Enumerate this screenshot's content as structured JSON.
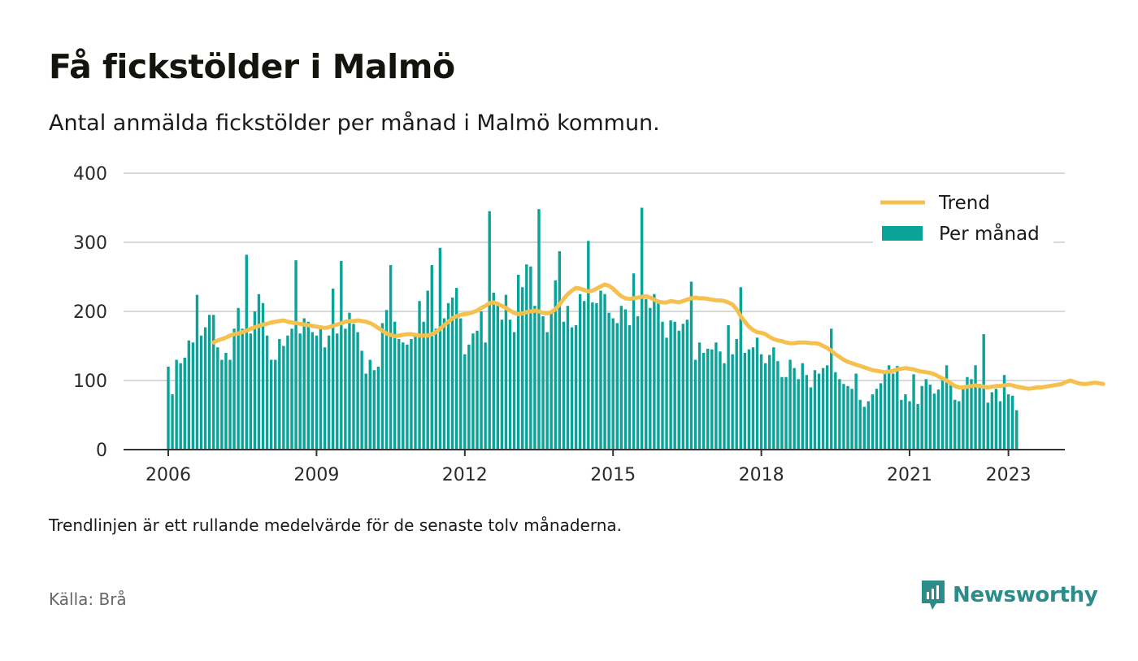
{
  "header": {
    "title": "Få fickstölder i Malmö",
    "subtitle": "Antal anmälda fickstölder per månad i Malmö kommun."
  },
  "footer": {
    "note": "Trendlinjen är ett rullande medelvärde för de senaste tolv månaderna.",
    "source": "Källa: Brå",
    "brand": "Newsworthy"
  },
  "colors": {
    "bars": "#0aa39a",
    "trend": "#f5c04e",
    "grid": "#d9d9d9",
    "axis": "#333333",
    "brand": "#2a8d8a"
  },
  "chart_data": {
    "type": "bar",
    "title": "Få fickstölder i Malmö",
    "subtitle": "Antal anmälda fickstölder per månad i Malmö kommun.",
    "start_month": "2006-01",
    "x_ticks": [
      "2006",
      "2009",
      "2012",
      "2015",
      "2018",
      "2021",
      "2023"
    ],
    "y_ticks": [
      0,
      100,
      200,
      300,
      400
    ],
    "ylim": [
      0,
      400
    ],
    "grid": true,
    "legend_position": "top-right",
    "series": [
      {
        "name": "Per månad",
        "type": "bar",
        "values": [
          120,
          80,
          130,
          125,
          133,
          158,
          155,
          224,
          165,
          177,
          195,
          195,
          148,
          130,
          140,
          130,
          175,
          205,
          175,
          282,
          168,
          200,
          225,
          212,
          165,
          130,
          130,
          160,
          150,
          165,
          175,
          274,
          168,
          190,
          185,
          170,
          165,
          175,
          148,
          165,
          233,
          168,
          273,
          175,
          198,
          182,
          170,
          143,
          110,
          130,
          115,
          120,
          183,
          202,
          267,
          185,
          160,
          155,
          152,
          160,
          165,
          215,
          185,
          230,
          267,
          175,
          292,
          190,
          212,
          220,
          234,
          190,
          138,
          152,
          168,
          172,
          200,
          155,
          345,
          227,
          210,
          188,
          224,
          188,
          170,
          253,
          235,
          268,
          265,
          208,
          348,
          193,
          170,
          198,
          245,
          287,
          185,
          208,
          177,
          180,
          225,
          215,
          302,
          213,
          212,
          230,
          225,
          198,
          190,
          183,
          208,
          203,
          180,
          255,
          193,
          350,
          218,
          205,
          225,
          213,
          185,
          162,
          187,
          185,
          172,
          182,
          188,
          243,
          130,
          155,
          140,
          146,
          145,
          155,
          142,
          125,
          180,
          138,
          160,
          235,
          140,
          145,
          148,
          162,
          138,
          125,
          137,
          148,
          128,
          105,
          105,
          130,
          118,
          102,
          125,
          108,
          90,
          115,
          110,
          118,
          122,
          175,
          112,
          102,
          95,
          92,
          88,
          110,
          72,
          62,
          70,
          80,
          88,
          96,
          110,
          122,
          110,
          121,
          72,
          80,
          70,
          109,
          66,
          92,
          102,
          94,
          81,
          87,
          105,
          122,
          95,
          72,
          70,
          89,
          105,
          102,
          122,
          95,
          167,
          68,
          83,
          88,
          70,
          108,
          80,
          78,
          57
        ]
      },
      {
        "name": "Trend",
        "type": "line",
        "start_month": "2006-12",
        "values": [
          155,
          158,
          160,
          162,
          165,
          167,
          168,
          170,
          172,
          175,
          177,
          179,
          181,
          182,
          184,
          185,
          186,
          187,
          185,
          184,
          183,
          182,
          181,
          180,
          179,
          178,
          177,
          176,
          177,
          179,
          181,
          183,
          185,
          186,
          186,
          187,
          186,
          185,
          183,
          180,
          176,
          172,
          168,
          166,
          164,
          165,
          166,
          167,
          167,
          166,
          165,
          165,
          165,
          167,
          170,
          175,
          180,
          185,
          190,
          193,
          195,
          196,
          197,
          199,
          201,
          205,
          208,
          212,
          213,
          211,
          208,
          205,
          201,
          198,
          196,
          197,
          199,
          200,
          201,
          200,
          198,
          197,
          199,
          203,
          210,
          218,
          225,
          230,
          234,
          233,
          231,
          229,
          230,
          233,
          236,
          239,
          237,
          233,
          227,
          222,
          219,
          218,
          219,
          220,
          221,
          222,
          220,
          217,
          214,
          213,
          213,
          215,
          214,
          213,
          215,
          217,
          219,
          220,
          219,
          219,
          218,
          217,
          216,
          216,
          215,
          213,
          210,
          203,
          193,
          185,
          178,
          173,
          170,
          169,
          167,
          163,
          160,
          158,
          157,
          155,
          154,
          154,
          155,
          155,
          155,
          154,
          154,
          153,
          150,
          147,
          143,
          138,
          134,
          130,
          127,
          125,
          123,
          121,
          119,
          117,
          115,
          114,
          113,
          112,
          113,
          114,
          116,
          117,
          118,
          117,
          116,
          114,
          113,
          112,
          111,
          109,
          106,
          103,
          100,
          96,
          92,
          90,
          90,
          91,
          92,
          93,
          92,
          91,
          90,
          91,
          92,
          92,
          93,
          94,
          93,
          91,
          90,
          89,
          88,
          89,
          90,
          90,
          91,
          92,
          93,
          94,
          95,
          98,
          100,
          98,
          96,
          95,
          95,
          96,
          97,
          96,
          95
        ]
      }
    ]
  }
}
